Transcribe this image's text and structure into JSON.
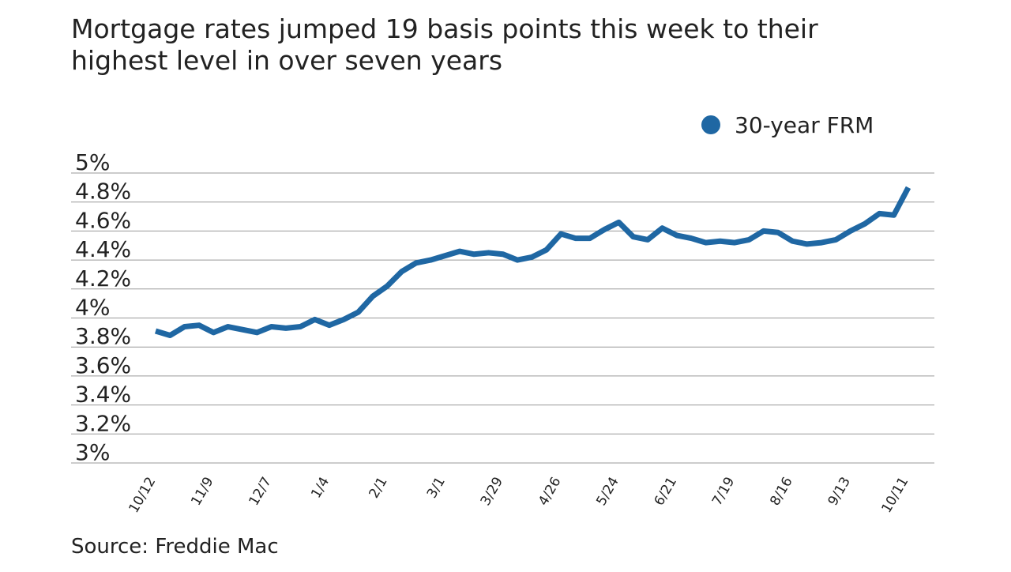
{
  "chart_data": {
    "type": "line",
    "title": "Mortgage rates jumped 19 basis points this week to their highest level in over seven years",
    "source": "Source: Freddie Mac",
    "categories": [
      "10/12",
      null,
      null,
      null,
      "11/9",
      null,
      null,
      null,
      "12/7",
      null,
      null,
      null,
      "1/4",
      null,
      null,
      null,
      "2/1",
      null,
      null,
      null,
      "3/1",
      null,
      null,
      null,
      "3/29",
      null,
      null,
      null,
      "4/26",
      null,
      null,
      null,
      "5/24",
      null,
      null,
      null,
      "6/21",
      null,
      null,
      null,
      "7/19",
      null,
      null,
      null,
      "8/16",
      null,
      null,
      null,
      "9/13",
      null,
      null,
      null,
      "10/11"
    ],
    "series": [
      {
        "name": "30-year FRM",
        "color": "#1f67a3",
        "values": [
          3.91,
          3.88,
          3.94,
          3.95,
          3.9,
          3.94,
          3.92,
          3.9,
          3.94,
          3.93,
          3.94,
          3.99,
          3.95,
          3.99,
          4.04,
          4.15,
          4.22,
          4.32,
          4.38,
          4.4,
          4.43,
          4.46,
          4.44,
          4.45,
          4.44,
          4.4,
          4.42,
          4.47,
          4.58,
          4.55,
          4.55,
          4.61,
          4.66,
          4.56,
          4.54,
          4.62,
          4.57,
          4.55,
          4.52,
          4.53,
          4.52,
          4.54,
          4.6,
          4.59,
          4.53,
          4.51,
          4.52,
          4.54,
          4.6,
          4.65,
          4.72,
          4.71,
          4.9
        ]
      }
    ],
    "ylim": [
      3,
      5
    ],
    "yticks": [
      {
        "value": 3,
        "label": "3%"
      },
      {
        "value": 3.2,
        "label": "3.2%"
      },
      {
        "value": 3.4,
        "label": "3.4%"
      },
      {
        "value": 3.6,
        "label": "3.6%"
      },
      {
        "value": 3.8,
        "label": "3.8%"
      },
      {
        "value": 4,
        "label": "4%"
      },
      {
        "value": 4.2,
        "label": "4.2%"
      },
      {
        "value": 4.4,
        "label": "4.4%"
      },
      {
        "value": 4.6,
        "label": "4.6%"
      },
      {
        "value": 4.8,
        "label": "4.8%"
      },
      {
        "value": 5,
        "label": "5%"
      }
    ],
    "grid": true,
    "legend": "top-right"
  }
}
